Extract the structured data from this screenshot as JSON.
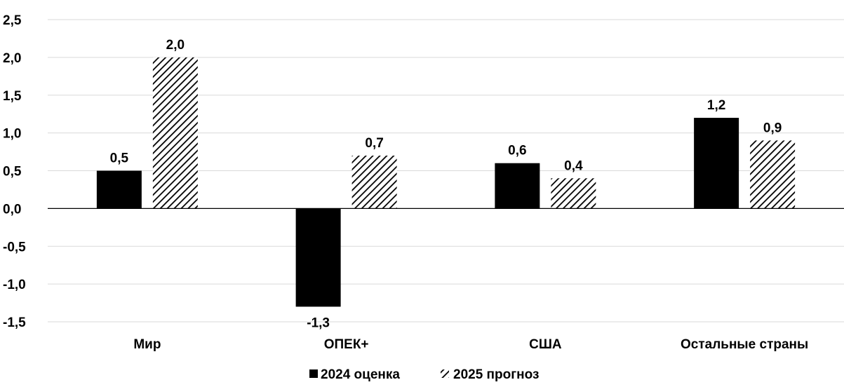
{
  "chart_data": {
    "type": "bar",
    "categories": [
      "Мир",
      "ОПЕК+",
      "США",
      "Остальные страны"
    ],
    "series": [
      {
        "name": "2024 оценка",
        "values": [
          0.5,
          -1.3,
          0.6,
          1.2
        ],
        "labels": [
          "0,5",
          "-1,3",
          "0,6",
          "1,2"
        ],
        "fill": "#000000"
      },
      {
        "name": "2025 прогноз",
        "values": [
          2.0,
          0.7,
          0.4,
          0.9
        ],
        "labels": [
          "2,0",
          "0,7",
          "0,4",
          "0,9"
        ],
        "fill": "hatched"
      }
    ],
    "ylim": [
      -1.5,
      2.5
    ],
    "yticks": [
      2.5,
      2.0,
      1.5,
      1.0,
      0.5,
      0.0,
      -0.5,
      -1.0,
      -1.5
    ],
    "ytick_labels": [
      "2,5",
      "2,0",
      "1,5",
      "1,0",
      "0,5",
      "0,0",
      "-0,5",
      "-1,0",
      "-1,5"
    ],
    "grid": true,
    "legend_position": "bottom",
    "colors": {
      "gridline": "#d9d9d9",
      "bar": "#000000",
      "axis": "#000000"
    }
  }
}
